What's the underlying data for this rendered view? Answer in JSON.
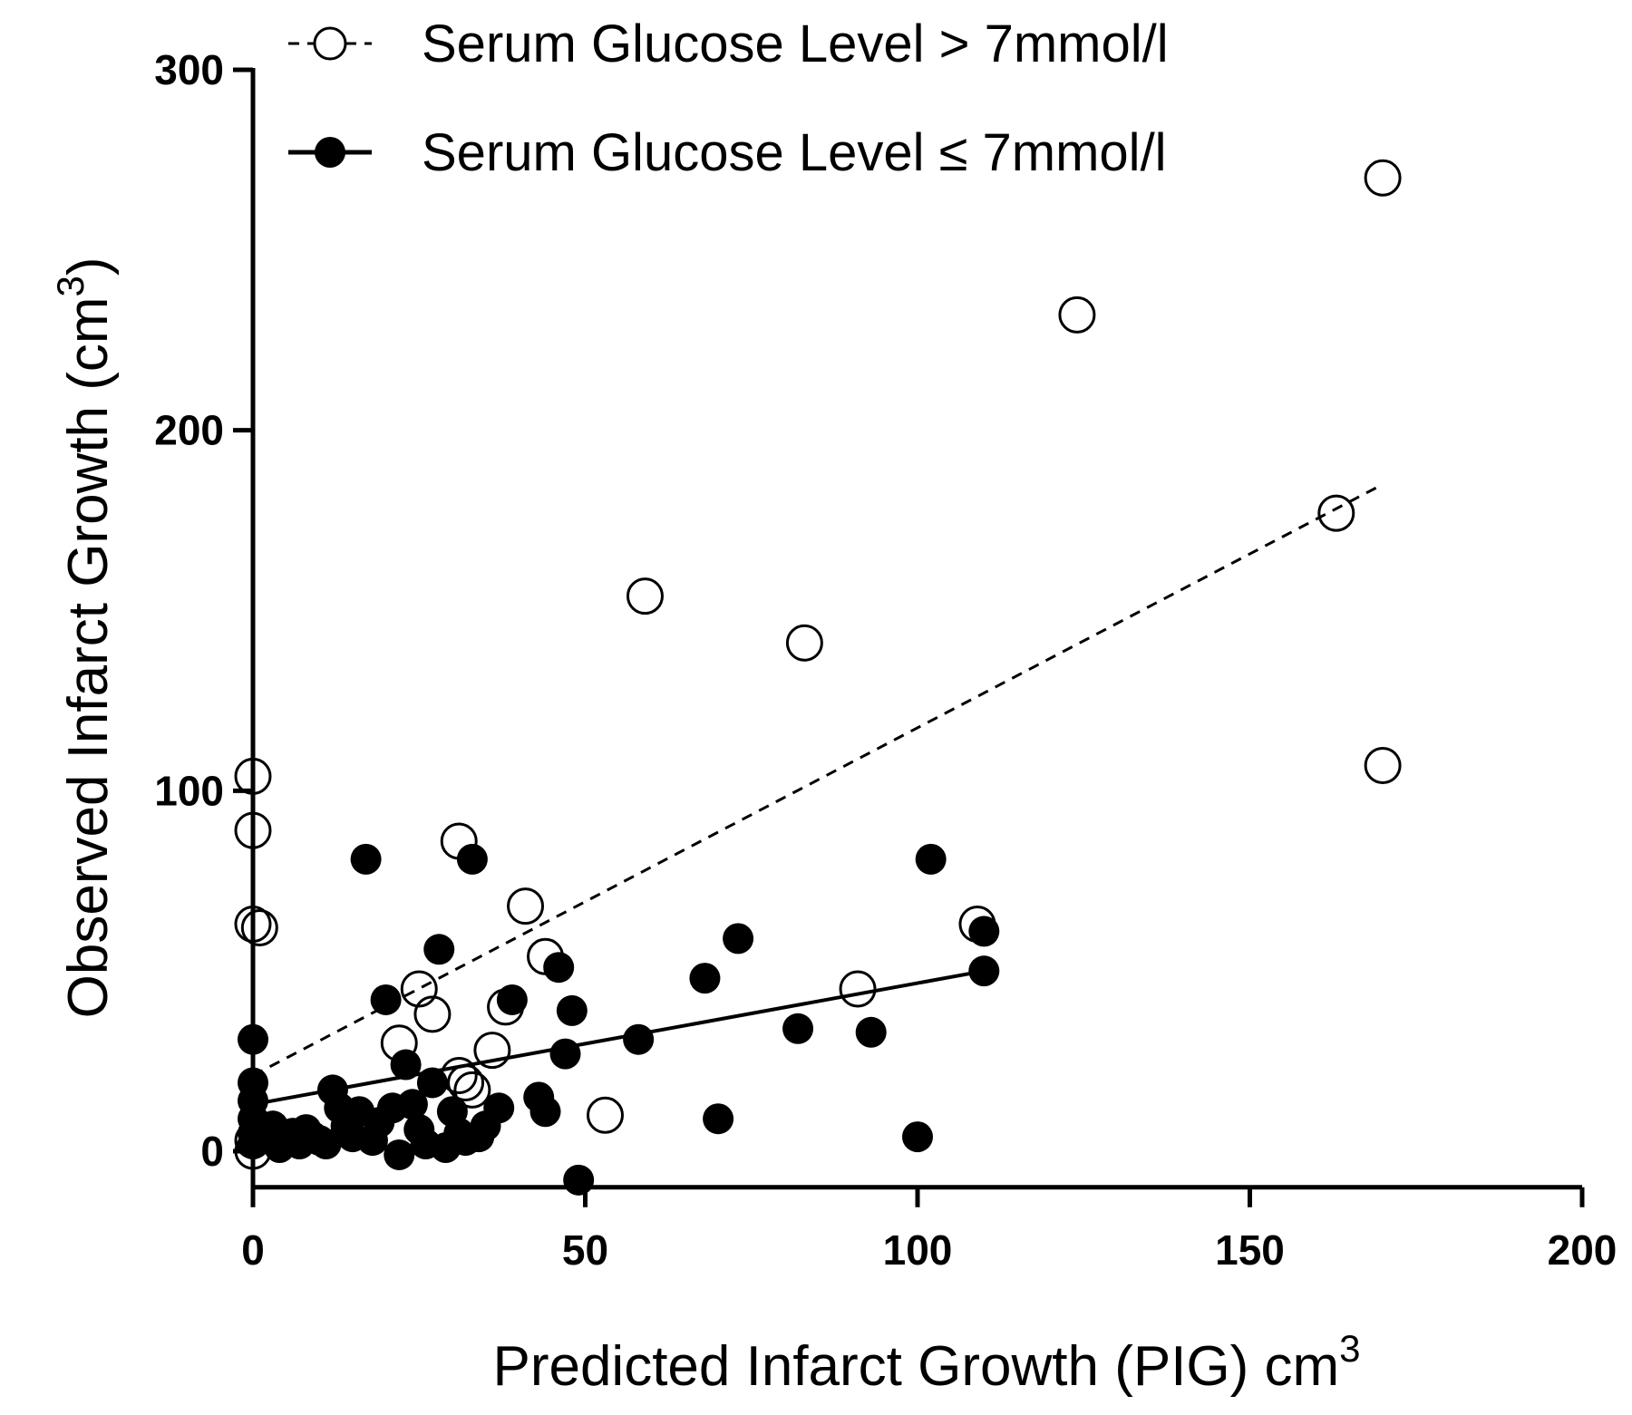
{
  "chart_data": {
    "type": "scatter",
    "xlabel": "Predicted Infarct Growth (PIG) cm",
    "xlabel_sup": "3",
    "ylabel": "Observed Infarct Growth (cm",
    "ylabel_sup": "3",
    "ylabel_close": ")",
    "xlim": [
      0,
      200
    ],
    "ylim": [
      -10,
      300
    ],
    "x_ticks": [
      0,
      50,
      100,
      150,
      200
    ],
    "x_tick_labels": [
      "0",
      "50",
      "100",
      "150",
      "200"
    ],
    "y_ticks": [
      0,
      100,
      200,
      300
    ],
    "y_tick_labels": [
      "0",
      "100",
      "200",
      "300"
    ],
    "grid": false,
    "legend_position": "top",
    "series": [
      {
        "name": "Serum Glucose Level > 7mmol/l",
        "marker": "open-circle",
        "line_style": "dashed",
        "fit_line": [
          [
            0,
            21
          ],
          [
            170,
            185
          ]
        ],
        "points": [
          [
            0,
            104
          ],
          [
            0,
            89
          ],
          [
            0,
            63
          ],
          [
            1,
            62
          ],
          [
            0,
            0
          ],
          [
            0,
            3
          ],
          [
            31,
            86
          ],
          [
            41,
            68
          ],
          [
            25,
            45
          ],
          [
            27,
            38
          ],
          [
            44,
            54
          ],
          [
            38,
            40
          ],
          [
            36,
            28
          ],
          [
            22,
            30
          ],
          [
            32,
            19
          ],
          [
            31,
            21
          ],
          [
            33,
            17
          ],
          [
            53,
            10
          ],
          [
            59,
            154
          ],
          [
            83,
            141
          ],
          [
            91,
            45
          ],
          [
            109,
            63
          ],
          [
            124,
            232
          ],
          [
            163,
            177
          ],
          [
            170,
            270
          ],
          [
            170,
            107
          ]
        ]
      },
      {
        "name": "Serum Glucose Level ≤ 7mmol/l",
        "marker": "filled-circle",
        "line_style": "solid",
        "fit_line": [
          [
            0,
            13
          ],
          [
            110,
            50
          ]
        ],
        "points": [
          [
            0,
            31
          ],
          [
            0,
            19
          ],
          [
            0,
            14
          ],
          [
            0,
            9
          ],
          [
            0,
            5
          ],
          [
            0,
            2
          ],
          [
            1,
            6
          ],
          [
            2,
            4
          ],
          [
            3,
            7
          ],
          [
            4,
            1
          ],
          [
            5,
            3
          ],
          [
            6,
            5
          ],
          [
            7,
            2
          ],
          [
            8,
            6
          ],
          [
            9,
            4
          ],
          [
            10,
            3
          ],
          [
            11,
            2
          ],
          [
            12,
            17
          ],
          [
            13,
            12
          ],
          [
            14,
            7
          ],
          [
            15,
            4
          ],
          [
            16,
            11
          ],
          [
            17,
            81
          ],
          [
            18,
            3
          ],
          [
            19,
            8
          ],
          [
            20,
            42
          ],
          [
            21,
            12
          ],
          [
            22,
            -1
          ],
          [
            23,
            24
          ],
          [
            24,
            13
          ],
          [
            25,
            6
          ],
          [
            26,
            2
          ],
          [
            27,
            19
          ],
          [
            28,
            56
          ],
          [
            29,
            1
          ],
          [
            30,
            11
          ],
          [
            31,
            5
          ],
          [
            32,
            3
          ],
          [
            33,
            81
          ],
          [
            34,
            4
          ],
          [
            35,
            7
          ],
          [
            37,
            12
          ],
          [
            39,
            42
          ],
          [
            43,
            15
          ],
          [
            44,
            11
          ],
          [
            46,
            51
          ],
          [
            47,
            27
          ],
          [
            48,
            39
          ],
          [
            49,
            -8
          ],
          [
            58,
            31
          ],
          [
            68,
            48
          ],
          [
            70,
            9
          ],
          [
            73,
            59
          ],
          [
            82,
            34
          ],
          [
            93,
            33
          ],
          [
            100,
            4
          ],
          [
            102,
            81
          ],
          [
            110,
            50
          ],
          [
            110,
            61
          ]
        ]
      }
    ]
  }
}
